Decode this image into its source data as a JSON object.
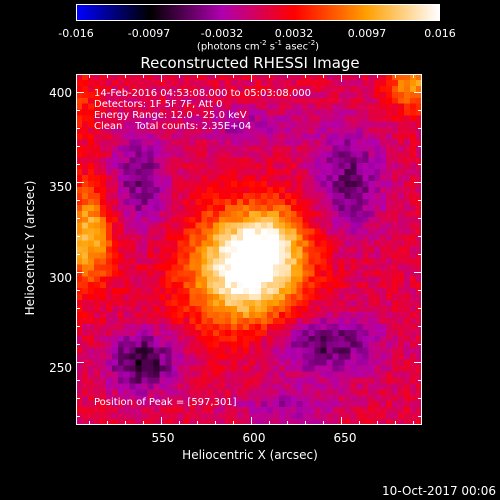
{
  "chart_data": {
    "type": "heatmap",
    "title": "Reconstructed RHESSI Image",
    "colorbar": {
      "ticks": [
        "-0.016",
        "-0.0097",
        "-0.0032",
        "0.0032",
        "0.0097",
        "0.016"
      ],
      "unit_prefix": "(photons cm",
      "unit_exp1": "-2",
      "unit_mid": " s",
      "unit_exp2": "-1",
      "unit_mid2": " asec",
      "unit_exp3": "-2",
      "unit_suffix": ")",
      "range": [
        -0.016,
        0.016
      ],
      "colors": [
        "#0000ff",
        "#000000",
        "#b000b0",
        "#ff0000",
        "#ffa000",
        "#ffffff"
      ]
    },
    "xlabel": "Heliocentric X (arcsec)",
    "ylabel": "Heliocentric Y (arcsec)",
    "xticks": [
      "550",
      "600",
      "650"
    ],
    "yticks": [
      "250",
      "300",
      "350",
      "400"
    ],
    "xlim": [
      503,
      695
    ],
    "ylim": [
      215,
      410
    ],
    "annotations": {
      "time": "14-Feb-2016 04:53:08.000 to 05:03:08.000",
      "detectors": "Detectors: 1F 5F 7F, Att 0",
      "energy": "Energy Range: 12.0 - 25.0 keV",
      "clean": "Clean    Total counts: 2.35E+04",
      "peak": "Position of Peak = [597,301]"
    },
    "peak": [
      597,
      301
    ],
    "sources": [
      {
        "x": 597,
        "y": 301,
        "amp": 0.0165,
        "sx": 22,
        "sy": 22
      },
      {
        "x": 612,
        "y": 318,
        "amp": 0.006,
        "sx": 14,
        "sy": 14
      },
      {
        "x": 510,
        "y": 320,
        "amp": 0.0105,
        "sx": 10,
        "sy": 20
      },
      {
        "x": 690,
        "y": 404,
        "amp": 0.009,
        "sx": 9,
        "sy": 10
      },
      {
        "x": 503,
        "y": 395,
        "amp": 0.004,
        "sx": 8,
        "sy": 15
      },
      {
        "x": 540,
        "y": 250,
        "amp": -0.0085,
        "sx": 14,
        "sy": 12
      },
      {
        "x": 640,
        "y": 260,
        "amp": -0.0075,
        "sx": 22,
        "sy": 12
      },
      {
        "x": 655,
        "y": 350,
        "amp": -0.0065,
        "sx": 14,
        "sy": 22
      },
      {
        "x": 538,
        "y": 350,
        "amp": -0.006,
        "sx": 12,
        "sy": 20
      },
      {
        "x": 600,
        "y": 380,
        "amp": -0.004,
        "sx": 22,
        "sy": 8
      },
      {
        "x": 620,
        "y": 225,
        "amp": -0.004,
        "sx": 20,
        "sy": 8
      }
    ],
    "background": 0.0007
  },
  "footer": {
    "date": "10-Oct-2017 00:06"
  }
}
